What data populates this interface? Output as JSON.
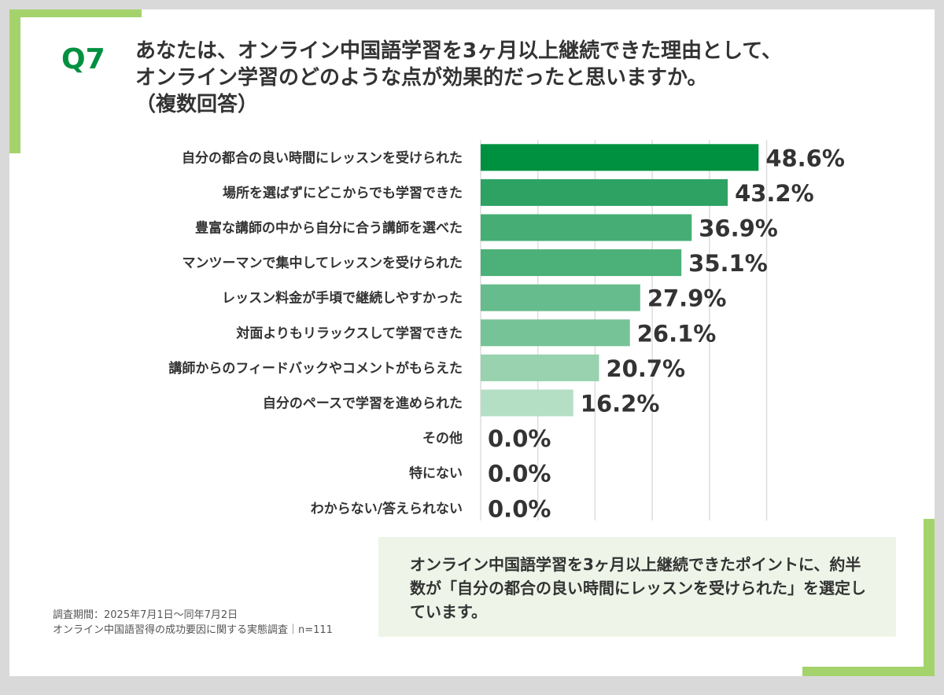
{
  "question_label": "Q7",
  "question_lines": [
    "あなたは、オンライン中国語学習を3ヶ月以上継続できた理由として、",
    "オンライン学習のどのような点が効果的だったと思いますか。",
    "（複数回答）"
  ],
  "chart_data": {
    "type": "bar",
    "orientation": "horizontal",
    "categories": [
      "自分の都合の良い時間にレッスンを受けられた",
      "場所を選ばずにどこからでも学習できた",
      "豊富な講師の中から自分に合う講師を選べた",
      "マンツーマンで集中してレッスンを受けられた",
      "レッスン料金が手頃で継続しやすかった",
      "対面よりもリラックスして学習できた",
      "講師からのフィードバックやコメントがもらえた",
      "自分のペースで学習を進められた",
      "その他",
      "特にない",
      "わからない/答えられない"
    ],
    "values": [
      48.6,
      43.2,
      36.9,
      35.1,
      27.9,
      26.1,
      20.7,
      16.2,
      0.0,
      0.0,
      0.0
    ],
    "value_labels": [
      "48.6%",
      "43.2%",
      "36.9%",
      "35.1%",
      "27.9%",
      "26.1%",
      "20.7%",
      "16.2%",
      "0.0%",
      "0.0%",
      "0.0%"
    ],
    "bar_colors": [
      "#009140",
      "#2ea263",
      "#46ae74",
      "#4cb079",
      "#66bc8c",
      "#76c397",
      "#98d2ae",
      "#b5dfc5",
      "#cfe9d8",
      "#cfe9d8",
      "#cfe9d8"
    ],
    "xlim": [
      0,
      50
    ],
    "grid": true,
    "grid_color": "#dddddd"
  },
  "point_text": "オンライン中国語学習を3ヶ月以上継続できたポイントに、約半数が「自分の都合の良い時間にレッスンを受けられた」を選定しています。",
  "source_lines": [
    "調査期間：2025年7月1日～同年7月2日",
    "オンライン中国語習得の成功要因に関する実態調査｜n=111"
  ]
}
